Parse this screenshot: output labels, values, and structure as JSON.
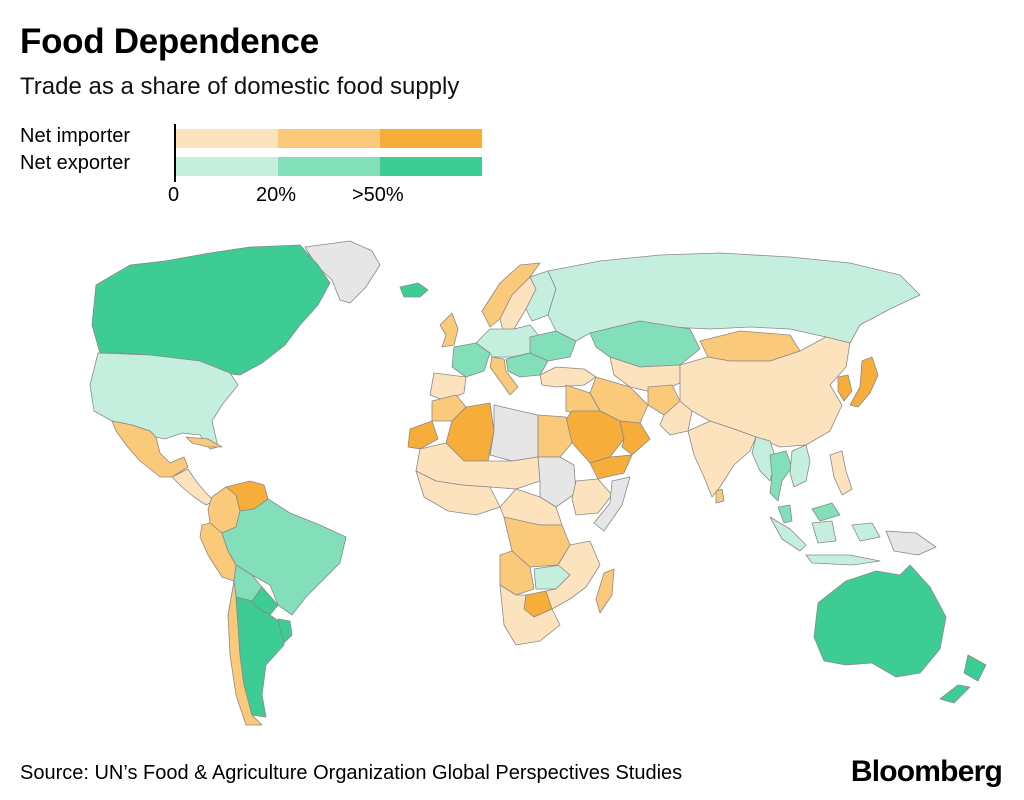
{
  "header": {
    "title": "Food Dependence",
    "subtitle": "Trade as a share of domestic food supply"
  },
  "legend": {
    "rows": [
      {
        "label": "Net importer",
        "colors": [
          "#fde3bd",
          "#fbc97a",
          "#f7ad3a"
        ]
      },
      {
        "label": "Net exporter",
        "colors": [
          "#c4efde",
          "#82dfba",
          "#3dcc94"
        ]
      }
    ],
    "ticks": [
      "0",
      "20%",
      ">50%"
    ],
    "no_data_color": "#e6e6e6"
  },
  "map": {
    "regions": [
      {
        "region": "Canada",
        "category": "Net exporter, >50%"
      },
      {
        "region": "United States",
        "category": "Net exporter, 0-20%"
      },
      {
        "region": "Greenland",
        "category": "No data"
      },
      {
        "region": "Mexico",
        "category": "Net importer, 20-50%"
      },
      {
        "region": "Central America",
        "category": "Net importer, 0-20%"
      },
      {
        "region": "Cuba",
        "category": "Net importer, 20-50%"
      },
      {
        "region": "Venezuela",
        "category": "Net importer, >50%"
      },
      {
        "region": "Colombia",
        "category": "Net importer, 20-50%"
      },
      {
        "region": "Brazil",
        "category": "Net exporter, 20-50%"
      },
      {
        "region": "Peru",
        "category": "Net importer, 20-50%"
      },
      {
        "region": "Bolivia",
        "category": "Net exporter, 20-50%"
      },
      {
        "region": "Chile",
        "category": "Net importer, 20-50%"
      },
      {
        "region": "Argentina",
        "category": "Net exporter, >50%"
      },
      {
        "region": "Paraguay",
        "category": "Net exporter, >50%"
      },
      {
        "region": "Uruguay",
        "category": "Net exporter, >50%"
      },
      {
        "region": "Iceland",
        "category": "Net exporter, >50%"
      },
      {
        "region": "Norway",
        "category": "Net importer, 20-50%"
      },
      {
        "region": "Sweden",
        "category": "Net importer, 0-20%"
      },
      {
        "region": "Finland",
        "category": "Net exporter, 0-20%"
      },
      {
        "region": "United Kingdom",
        "category": "Net importer, 20-50%"
      },
      {
        "region": "France",
        "category": "Net exporter, 20-50%"
      },
      {
        "region": "Spain",
        "category": "Net importer, 0-20%"
      },
      {
        "region": "Italy",
        "category": "Net importer, 20-50%"
      },
      {
        "region": "Central Europe",
        "category": "Net exporter, 0-20%"
      },
      {
        "region": "Ukraine",
        "category": "Net exporter, 20-50%"
      },
      {
        "region": "Balkans",
        "category": "Net exporter, 20-50%"
      },
      {
        "region": "Russia",
        "category": "Net exporter, 0-20%"
      },
      {
        "region": "Kazakhstan",
        "category": "Net exporter, 20-50%"
      },
      {
        "region": "Central Asia",
        "category": "Net importer, 0-20%"
      },
      {
        "region": "Mongolia",
        "category": "Net importer, 20-50%"
      },
      {
        "region": "China",
        "category": "Net importer, 0-20%"
      },
      {
        "region": "Korea",
        "category": "Net importer, >50%"
      },
      {
        "region": "Japan",
        "category": "Net importer, >50%"
      },
      {
        "region": "Turkey",
        "category": "Net importer, 0-20%"
      },
      {
        "region": "Iran",
        "category": "Net importer, 20-50%"
      },
      {
        "region": "Afghanistan",
        "category": "Net importer, 20-50%"
      },
      {
        "region": "Pakistan",
        "category": "Net importer, 0-20%"
      },
      {
        "region": "Iraq",
        "category": "Net importer, 20-50%"
      },
      {
        "region": "Saudi Arabia",
        "category": "Net importer, >50%"
      },
      {
        "region": "Yemen",
        "category": "Net importer, >50%"
      },
      {
        "region": "Oman",
        "category": "Net importer, >50%"
      },
      {
        "region": "India",
        "category": "Net importer, 0-20%"
      },
      {
        "region": "Sri Lanka",
        "category": "Net importer, 20-50%"
      },
      {
        "region": "Myanmar",
        "category": "Net exporter, 0-20%"
      },
      {
        "region": "Thailand",
        "category": "Net exporter, 20-50%"
      },
      {
        "region": "Vietnam",
        "category": "Net exporter, 0-20%"
      },
      {
        "region": "Philippines",
        "category": "Net importer, 0-20%"
      },
      {
        "region": "Malaysia",
        "category": "Net exporter, 20-50%"
      },
      {
        "region": "Indonesia",
        "category": "Net exporter, 0-20%"
      },
      {
        "region": "Papua New Guinea",
        "category": "No data"
      },
      {
        "region": "Australia",
        "category": "Net exporter, >50%"
      },
      {
        "region": "New Zealand",
        "category": "Net exporter, >50%"
      },
      {
        "region": "Morocco",
        "category": "Net importer, 20-50%"
      },
      {
        "region": "Western Sahara",
        "category": "Net importer, >50%"
      },
      {
        "region": "Algeria",
        "category": "Net importer, >50%"
      },
      {
        "region": "Libya",
        "category": "No data"
      },
      {
        "region": "Egypt",
        "category": "Net importer, 20-50%"
      },
      {
        "region": "Sahel",
        "category": "Net importer, 0-20%"
      },
      {
        "region": "West Africa",
        "category": "Net importer, 0-20%"
      },
      {
        "region": "Sudan",
        "category": "No data"
      },
      {
        "region": "Ethiopia",
        "category": "Net importer, 0-20%"
      },
      {
        "region": "Somalia",
        "category": "No data"
      },
      {
        "region": "Central Africa",
        "category": "Net importer, 0-20%"
      },
      {
        "region": "DR Congo",
        "category": "Net importer, 20-50%"
      },
      {
        "region": "Angola",
        "category": "Net importer, 20-50%"
      },
      {
        "region": "Zambia",
        "category": "Net exporter, 0-20%"
      },
      {
        "region": "Botswana",
        "category": "Net importer, >50%"
      },
      {
        "region": "Southern Africa",
        "category": "Net importer, 0-20%"
      },
      {
        "region": "Madagascar",
        "category": "Net importer, 20-50%"
      }
    ]
  },
  "footer": {
    "source": "Source: UN’s Food & Agriculture Organization Global Perspectives Studies",
    "brand": "Bloomberg"
  }
}
